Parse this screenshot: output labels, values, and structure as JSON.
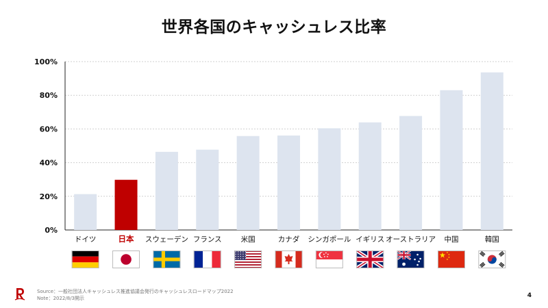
{
  "chart_data": {
    "type": "bar",
    "title": "世界各国のキャッシュレス比率",
    "categories": [
      "ドイツ",
      "日本",
      "スウェーデン",
      "フランス",
      "米国",
      "カナダ",
      "シンガポール",
      "イギリス",
      "オーストラリア",
      "中国",
      "韓国"
    ],
    "values": [
      21.3,
      29.8,
      46.4,
      47.7,
      55.8,
      56.1,
      60.4,
      63.9,
      67.7,
      83.0,
      93.6
    ],
    "highlight_index": 1,
    "ylim": [
      0,
      100
    ],
    "yticks": [
      "0%",
      "20%",
      "40%",
      "60%",
      "80%",
      "100%"
    ],
    "grid": true,
    "colors": {
      "bar": "#dde4ef",
      "highlight": "#bf0000",
      "highlight_label": "#bf0000"
    },
    "flags": [
      "germany-flag",
      "japan-flag",
      "sweden-flag",
      "france-flag",
      "usa-flag",
      "canada-flag",
      "singapore-flag",
      "uk-flag",
      "australia-flag",
      "china-flag",
      "korea-flag"
    ]
  },
  "footer": {
    "source": "Source：一般社団法人キャッシュレス推進協議会発行のキャッシュレスロードマップ2022",
    "note": "Note：2022/8/3開示",
    "page_number": "4"
  }
}
